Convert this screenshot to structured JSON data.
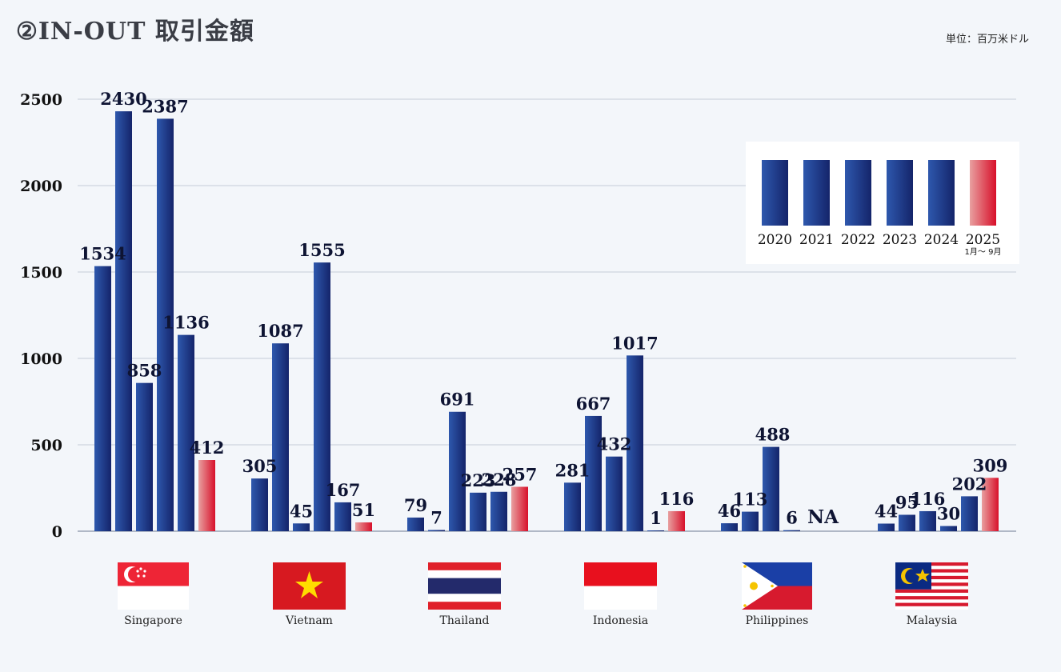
{
  "header": {
    "title": "②IN-OUT 取引金額",
    "unit": "単位：百万米ドル"
  },
  "chart_data": {
    "type": "bar",
    "title": "②IN-OUT 取引金額",
    "ylabel": "単位：百万米ドル",
    "ylim": [
      0,
      2500
    ],
    "yticks": [
      0,
      500,
      1000,
      1500,
      2000,
      2500
    ],
    "grid": true,
    "legend_position": "top-right",
    "categories": [
      "Singapore",
      "Vietnam",
      "Thailand",
      "Indonesia",
      "Philippines",
      "Malaysia"
    ],
    "series": [
      {
        "name": "2020",
        "sub": "",
        "color": "blue",
        "values": [
          1534,
          305,
          79,
          281,
          46,
          44
        ]
      },
      {
        "name": "2021",
        "sub": "",
        "color": "blue",
        "values": [
          2430,
          1087,
          7,
          667,
          113,
          95
        ]
      },
      {
        "name": "2022",
        "sub": "",
        "color": "blue",
        "values": [
          858,
          45,
          691,
          432,
          488,
          116
        ]
      },
      {
        "name": "2023",
        "sub": "",
        "color": "blue",
        "values": [
          2387,
          1555,
          223,
          1017,
          6,
          30
        ]
      },
      {
        "name": "2024",
        "sub": "",
        "color": "blue",
        "values": [
          1136,
          167,
          228,
          1,
          null,
          202
        ]
      },
      {
        "name": "2025",
        "sub": "1月〜 9月",
        "color": "red",
        "values": [
          412,
          51,
          257,
          116,
          null,
          309
        ]
      }
    ],
    "annotations": [
      {
        "category": "Philippines",
        "series": "2024-2025",
        "text": "NA"
      }
    ]
  },
  "colors": {
    "bar_dark": "#14246a",
    "bar_light": "#2e58ad",
    "red_light": "#e8a0a0",
    "red_dark": "#d8102a",
    "grid": "#c5ccd8",
    "axis": "#9aa3b5"
  }
}
